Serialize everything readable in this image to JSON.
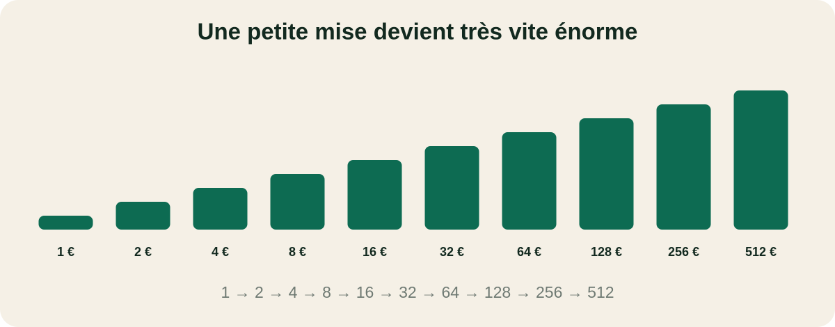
{
  "chart_data": {
    "type": "bar",
    "title": "Une petite mise devient très vite énorme",
    "values": [
      1,
      2,
      4,
      8,
      16,
      32,
      64,
      128,
      256,
      512
    ],
    "value_labels": [
      "1 €",
      "2 €",
      "4 €",
      "8 €",
      "16 €",
      "32 €",
      "64 €",
      "128 €",
      "256 €",
      "512 €"
    ],
    "color": "#0d6b52",
    "log_scale": true,
    "ylim": [
      0.5,
      512
    ],
    "caption": "1 → 2 → 4 → 8 → 16 → 32 → 64 → 128 → 256 → 512"
  }
}
